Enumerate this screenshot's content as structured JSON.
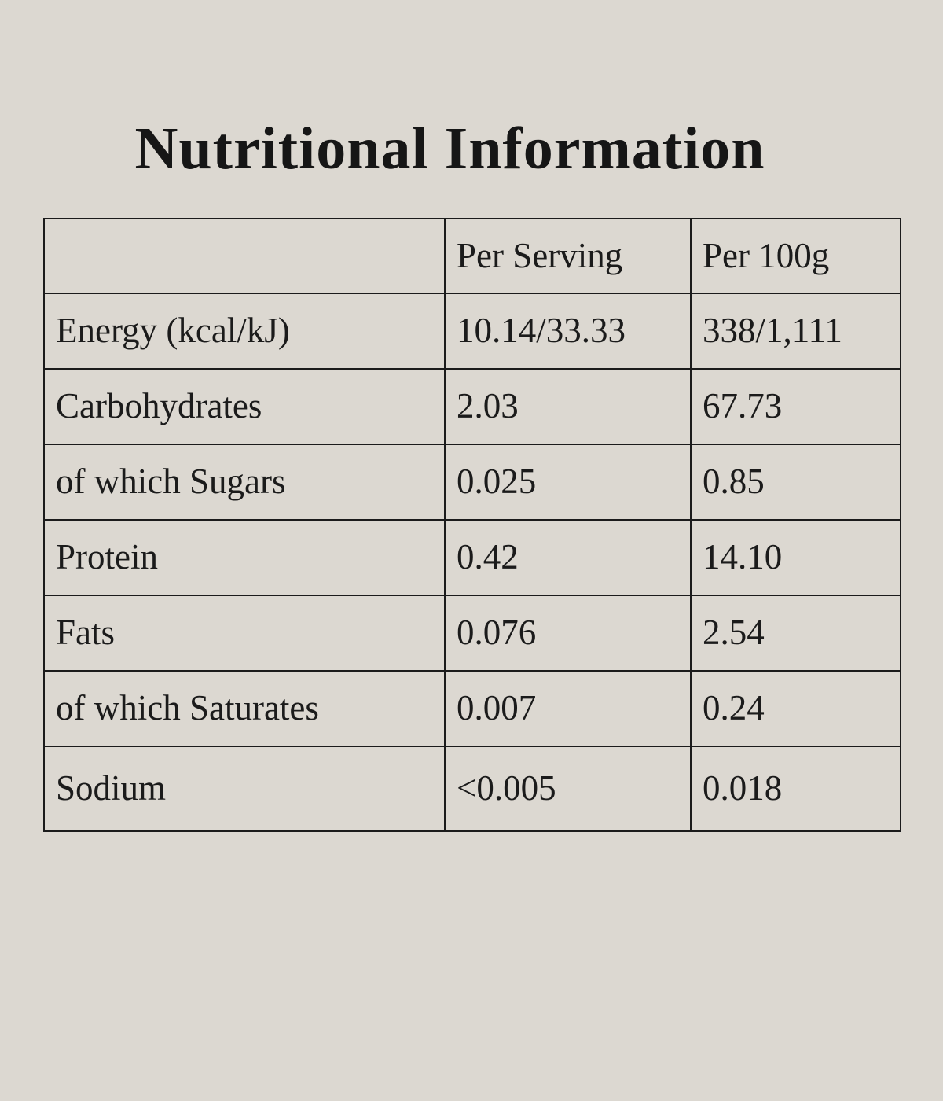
{
  "page": {
    "background_color": "#dcd8d1",
    "text_color": "#1b1b1b",
    "border_color": "#1b1b1b"
  },
  "title": "Nutritional Information",
  "table": {
    "columns": [
      "",
      "Per Serving",
      "Per 100g"
    ],
    "rows": [
      {
        "label": "Energy (kcal/kJ)",
        "per_serving": "10.14/33.33",
        "per_100g": "338/1,111"
      },
      {
        "label": "Carbohydrates",
        "per_serving": "2.03",
        "per_100g": "67.73"
      },
      {
        "label": "of which Sugars",
        "per_serving": "0.025",
        "per_100g": "0.85"
      },
      {
        "label": "Protein",
        "per_serving": "0.42",
        "per_100g": "14.10"
      },
      {
        "label": "Fats",
        "per_serving": "0.076",
        "per_100g": "2.54"
      },
      {
        "label": "of which Saturates",
        "per_serving": "0.007",
        "per_100g": "0.24"
      },
      {
        "label": "Sodium",
        "per_serving": "<0.005",
        "per_100g": "0.018"
      }
    ]
  }
}
